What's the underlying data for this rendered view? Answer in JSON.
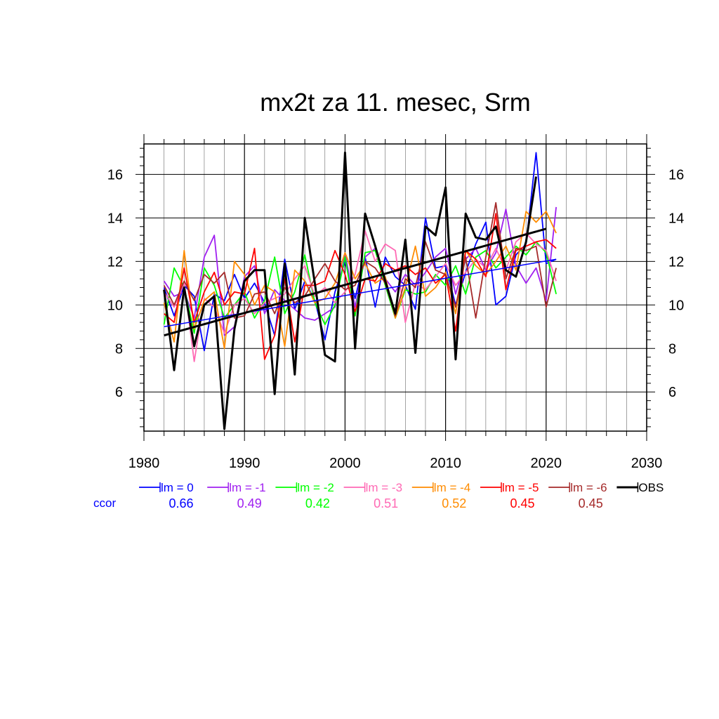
{
  "chart_data": {
    "type": "line",
    "title": "mx2t za 11. mesec, Srm",
    "xlim": [
      1980,
      2030
    ],
    "ylim": [
      4.2,
      17.4
    ],
    "x_ticks": [
      1980,
      1990,
      2000,
      2010,
      2020,
      2030
    ],
    "y_ticks": [
      6,
      8,
      10,
      12,
      14,
      16
    ],
    "grid": true,
    "legend_placement": "bottom",
    "ccor_label": "ccor",
    "x": [
      1982,
      1983,
      1984,
      1985,
      1986,
      1987,
      1988,
      1989,
      1990,
      1991,
      1992,
      1993,
      1994,
      1995,
      1996,
      1997,
      1998,
      1999,
      2000,
      2001,
      2002,
      2003,
      2004,
      2005,
      2006,
      2007,
      2008,
      2009,
      2010,
      2011,
      2012,
      2013,
      2014,
      2015,
      2016,
      2017,
      2018,
      2019,
      2020,
      2021
    ],
    "series": [
      {
        "name": "lm = 0",
        "color": "#0000ff",
        "width": 1.8,
        "ccor": "0.66",
        "trend": [
          [
            1982,
            9.0
          ],
          [
            2021,
            12.1
          ]
        ],
        "values": [
          10.8,
          9.5,
          10.9,
          10.4,
          7.9,
          10.5,
          10.2,
          11.4,
          10.3,
          11.0,
          10.1,
          8.6,
          12.1,
          9.8,
          11.1,
          10.2,
          8.4,
          10.6,
          12.0,
          10.3,
          12.2,
          9.9,
          12.2,
          11.3,
          10.9,
          9.8,
          14.0,
          11.7,
          11.8,
          10.0,
          11.5,
          12.8,
          13.8,
          10.0,
          10.4,
          12.3,
          12.8,
          17.0,
          11.9,
          12.1
        ]
      },
      {
        "name": "lm = -1",
        "color": "#a020f0",
        "width": 1.8,
        "ccor": "0.49",
        "values": [
          11.1,
          10.4,
          10.6,
          9.4,
          12.2,
          13.2,
          8.6,
          9.0,
          11.3,
          11.8,
          9.6,
          10.7,
          10.2,
          9.8,
          9.4,
          9.3,
          9.6,
          9.9,
          12.4,
          9.9,
          12.2,
          12.6,
          11.2,
          10.6,
          11.4,
          10.9,
          11.5,
          12.2,
          12.6,
          10.5,
          12.1,
          12.6,
          11.6,
          12.4,
          14.4,
          11.8,
          11.0,
          11.7,
          10.2,
          14.5
        ]
      },
      {
        "name": "lm = -2",
        "color": "#00ff00",
        "width": 1.8,
        "ccor": "0.42",
        "values": [
          9.1,
          11.7,
          10.8,
          8.7,
          11.7,
          10.9,
          9.4,
          10.0,
          10.6,
          9.4,
          10.2,
          12.2,
          9.6,
          10.6,
          12.3,
          10.1,
          9.1,
          10.0,
          12.2,
          9.5,
          12.4,
          12.5,
          10.9,
          9.4,
          10.7,
          10.5,
          10.6,
          11.4,
          10.9,
          11.8,
          10.5,
          12.2,
          12.5,
          11.7,
          12.2,
          12.7,
          12.3,
          12.9,
          12.4,
          10.5
        ]
      },
      {
        "name": "lm = -3",
        "color": "#ff69b4",
        "width": 1.8,
        "ccor": "0.51",
        "values": [
          10.6,
          9.9,
          11.0,
          7.4,
          10.3,
          9.9,
          8.7,
          10.0,
          10.3,
          9.6,
          10.1,
          10.3,
          10.5,
          11.2,
          11.8,
          10.4,
          10.8,
          10.1,
          10.6,
          11.4,
          13.4,
          12.0,
          12.8,
          12.5,
          9.2,
          11.0,
          10.7,
          11.3,
          11.9,
          10.9,
          11.5,
          12.1,
          11.7,
          12.6,
          11.6,
          12.9,
          13.3,
          12.8,
          12.5,
          11.1
        ]
      },
      {
        "name": "lm = -4",
        "color": "#ff8c00",
        "width": 1.8,
        "ccor": "0.52",
        "values": [
          10.1,
          8.3,
          12.5,
          8.9,
          10.2,
          10.6,
          8.0,
          12.0,
          11.4,
          10.0,
          10.9,
          10.6,
          8.1,
          11.6,
          11.1,
          10.1,
          10.3,
          11.0,
          12.4,
          11.2,
          11.9,
          11.0,
          11.3,
          9.4,
          10.8,
          12.7,
          10.4,
          10.8,
          11.5,
          9.6,
          12.5,
          11.8,
          11.4,
          12.0,
          12.7,
          11.6,
          14.3,
          13.8,
          14.3,
          13.3
        ]
      },
      {
        "name": "lm = -5",
        "color": "#ff0000",
        "width": 1.8,
        "ccor": "0.45",
        "values": [
          9.6,
          9.2,
          11.7,
          9.2,
          10.6,
          11.5,
          10.0,
          10.6,
          10.5,
          12.6,
          7.5,
          8.6,
          11.2,
          8.3,
          10.9,
          10.9,
          11.1,
          12.5,
          11.4,
          9.7,
          11.2,
          11.1,
          11.9,
          11.6,
          11.8,
          11.4,
          11.7,
          11.0,
          11.4,
          8.8,
          12.5,
          12.1,
          11.3,
          14.2,
          10.7,
          12.5,
          12.7,
          12.9,
          13.0,
          12.6
        ]
      },
      {
        "name": "lm = -6",
        "color": "#a52a2a",
        "width": 1.8,
        "ccor": "0.45",
        "values": [
          10.9,
          10.0,
          11.1,
          10.2,
          11.4,
          11.0,
          11.5,
          9.4,
          9.5,
          10.5,
          10.6,
          9.6,
          10.8,
          10.1,
          10.4,
          11.2,
          11.9,
          11.1,
          10.7,
          10.9,
          12.0,
          11.7,
          11.0,
          9.5,
          11.2,
          10.8,
          12.9,
          11.6,
          11.4,
          9.9,
          12.2,
          9.4,
          12.2,
          14.7,
          11.2,
          12.6,
          12.5,
          12.7,
          9.9,
          11.7
        ]
      },
      {
        "name": "OBS",
        "color": "#000000",
        "width": 3,
        "ccor": "",
        "trend": [
          [
            1982,
            8.6
          ],
          [
            2020,
            13.5
          ]
        ],
        "values": [
          10.7,
          7.0,
          10.8,
          8.1,
          10.0,
          10.4,
          4.3,
          8.9,
          11.1,
          11.6,
          11.6,
          5.9,
          11.9,
          6.8,
          14.0,
          11.0,
          7.7,
          7.4,
          17.0,
          8.0,
          14.2,
          12.7,
          11.1,
          9.6,
          13.0,
          7.8,
          13.6,
          13.2,
          15.4,
          7.5,
          14.2,
          13.1,
          13.0,
          13.6,
          11.6,
          11.3,
          12.9,
          15.9,
          null,
          null
        ]
      }
    ]
  }
}
